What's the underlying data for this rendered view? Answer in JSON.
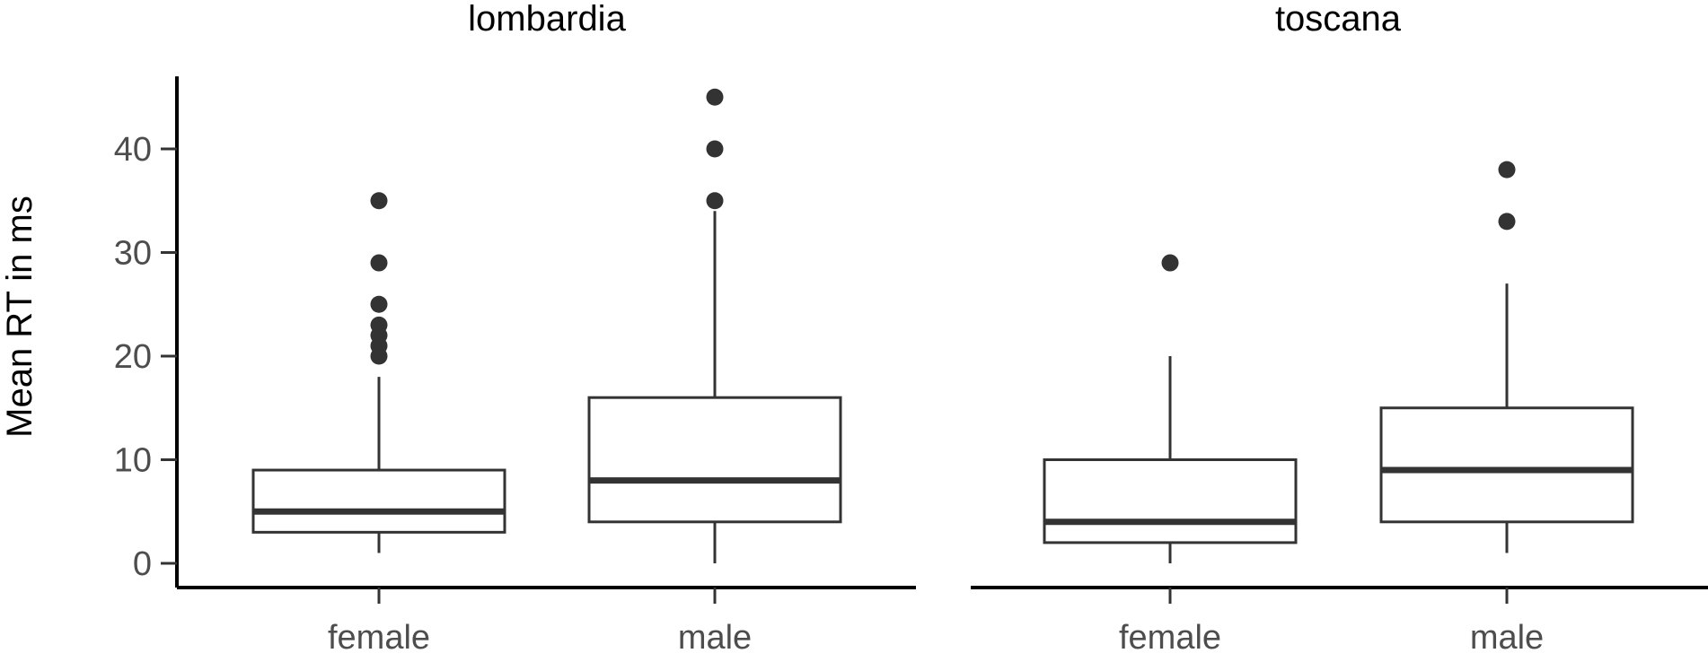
{
  "chart_data": {
    "type": "boxplot",
    "ylabel": "Mean RT in ms",
    "ylim": [
      -2.5,
      47
    ],
    "yticks": [
      0,
      10,
      20,
      30,
      40
    ],
    "grid": false,
    "facets": [
      {
        "title": "lombardia",
        "categories": [
          "female",
          "male"
        ],
        "boxes": [
          {
            "category": "female",
            "whisker_low": 1,
            "q1": 3,
            "median": 5,
            "q3": 9,
            "whisker_high": 18,
            "outliers": [
              20,
              21,
              22,
              23,
              25,
              29,
              35
            ]
          },
          {
            "category": "male",
            "whisker_low": 0,
            "q1": 4,
            "median": 8,
            "q3": 16,
            "whisker_high": 34,
            "outliers": [
              35,
              40,
              45
            ]
          }
        ]
      },
      {
        "title": "toscana",
        "categories": [
          "female",
          "male"
        ],
        "boxes": [
          {
            "category": "female",
            "whisker_low": 0,
            "q1": 2,
            "median": 4,
            "q3": 10,
            "whisker_high": 20,
            "outliers": [
              29
            ]
          },
          {
            "category": "male",
            "whisker_low": 1,
            "q1": 4,
            "median": 9,
            "q3": 15,
            "whisker_high": 27,
            "outliers": [
              33,
              38
            ]
          }
        ]
      }
    ]
  }
}
